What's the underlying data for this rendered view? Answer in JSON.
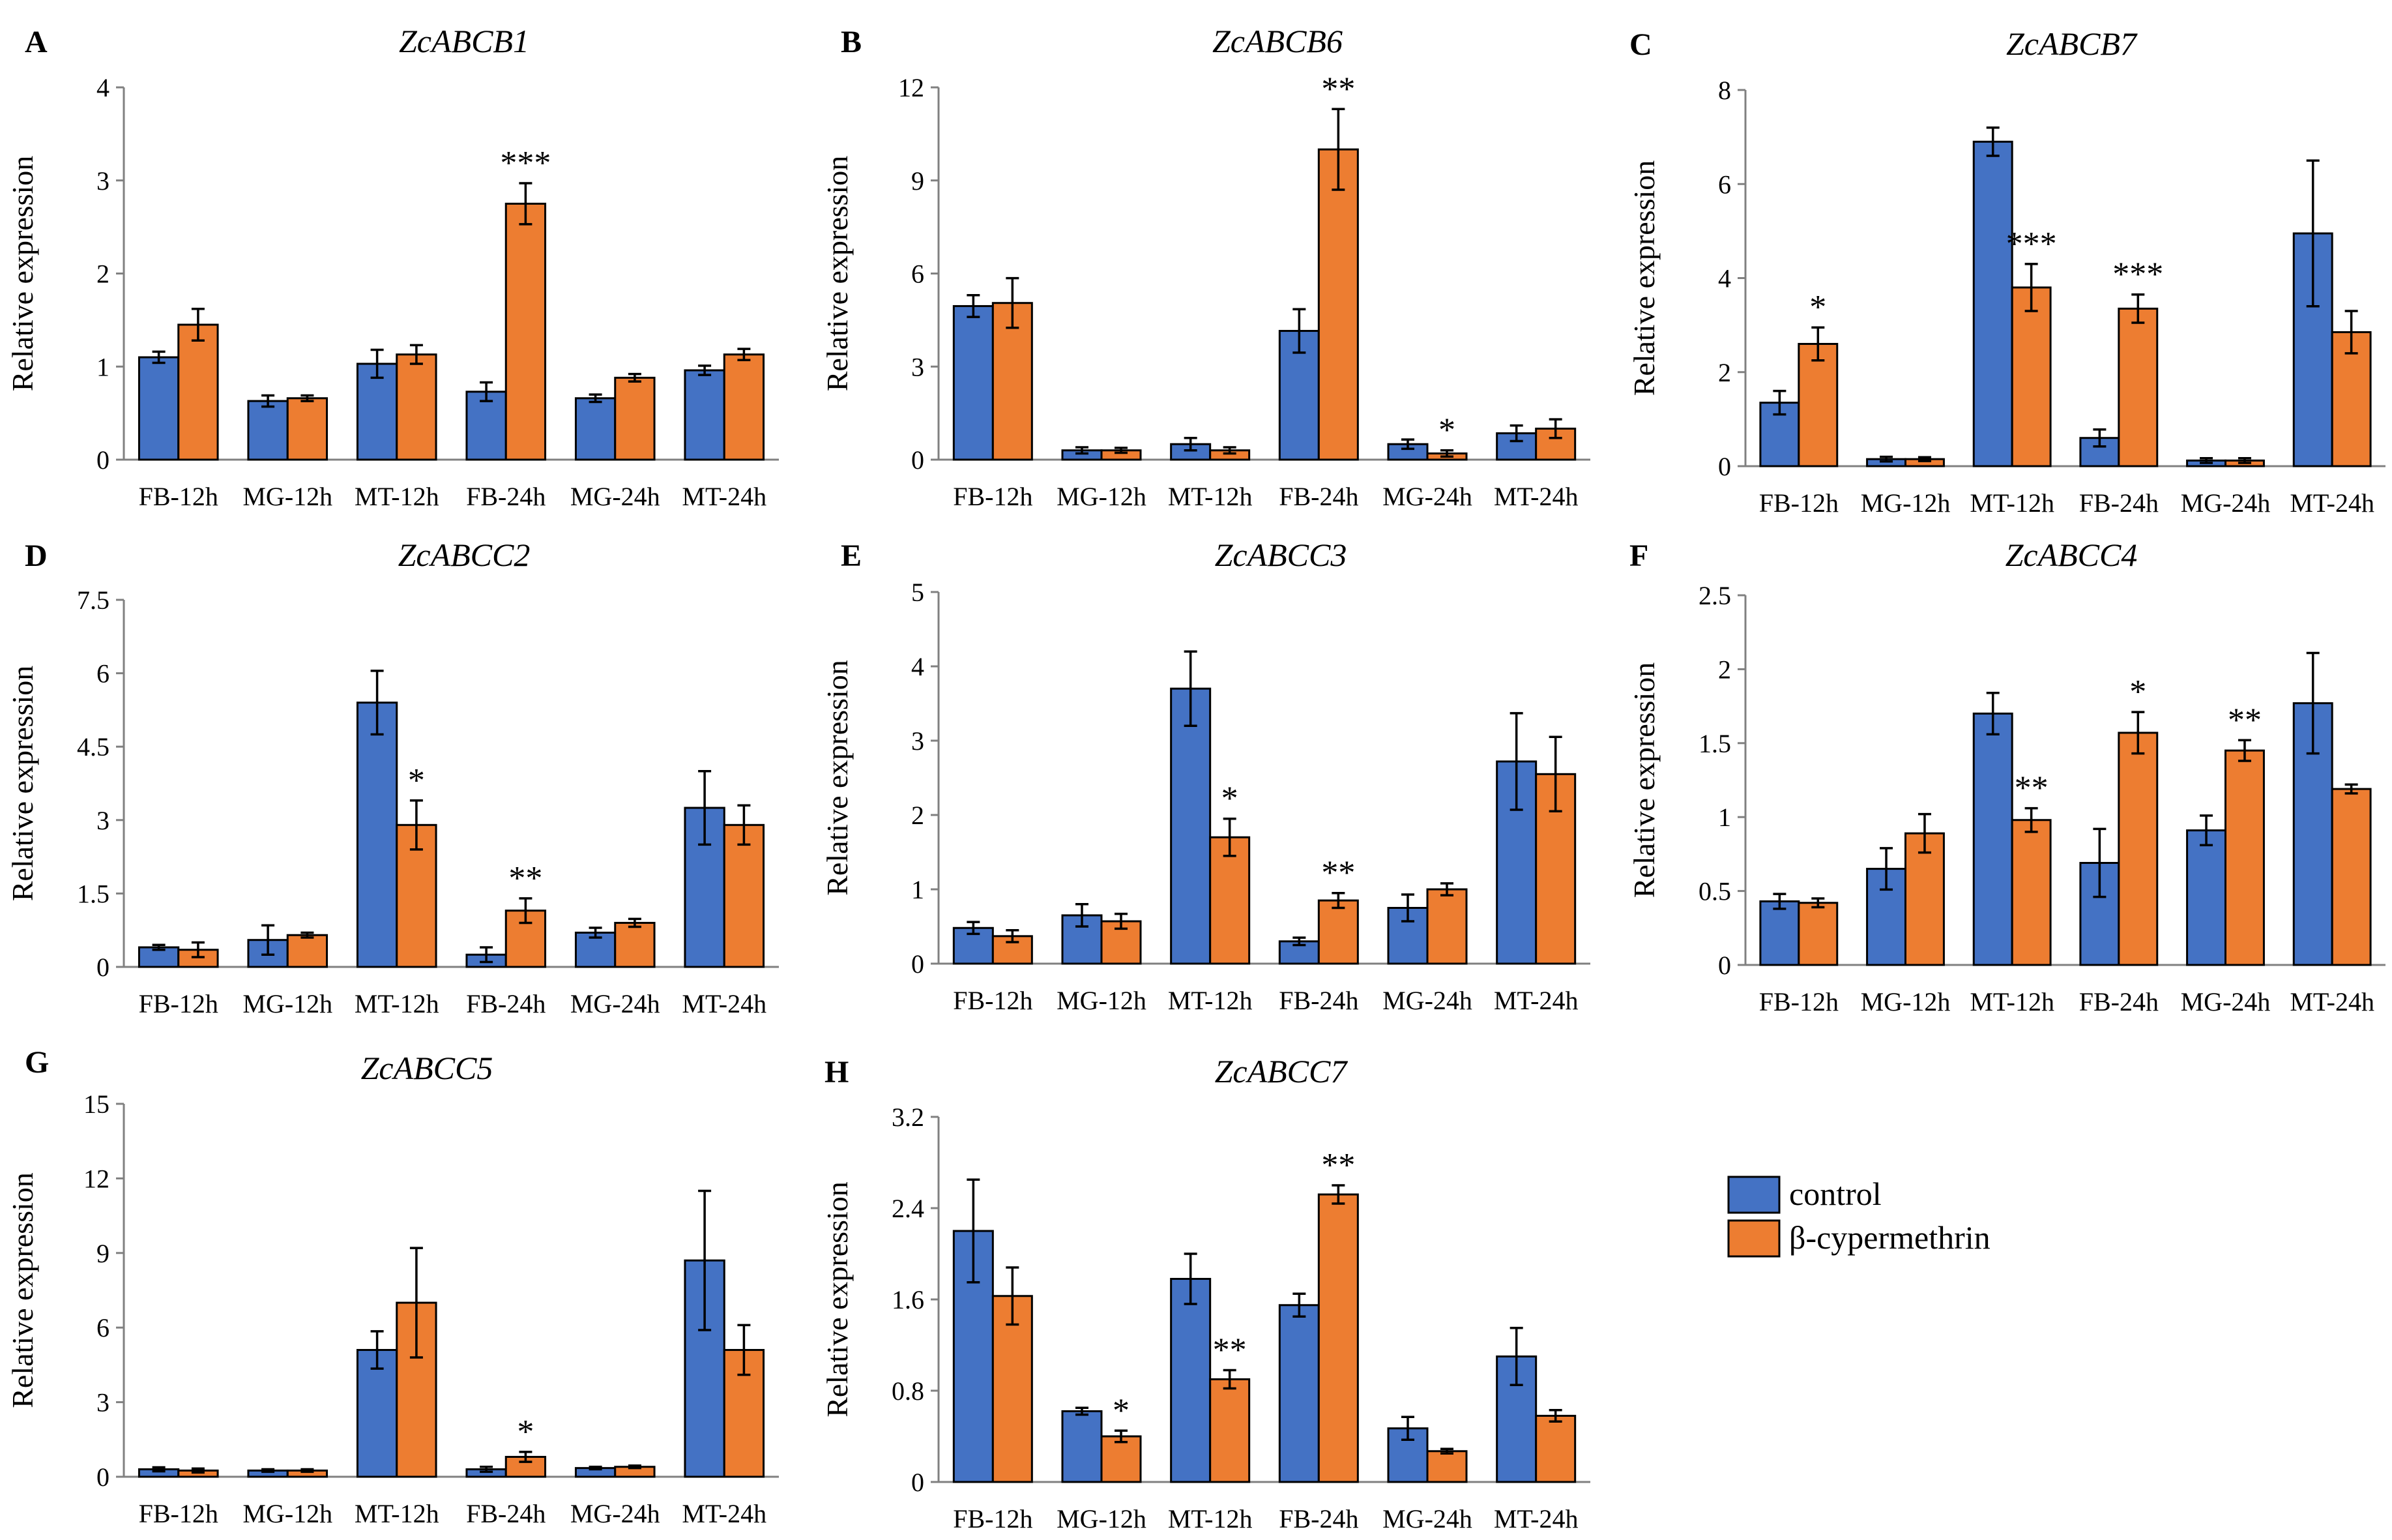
{
  "colors": {
    "control": "#4472C4",
    "treatment": "#ED7D31",
    "bar_stroke": "#000000",
    "axis": "#808080"
  },
  "legend": {
    "items": [
      {
        "label": "control",
        "color": "#4472C4"
      },
      {
        "label": "β-cypermethrin",
        "color": "#ED7D31"
      }
    ]
  },
  "chart_data": [
    {
      "panel": "A",
      "title": "ZcABCB1",
      "type": "bar",
      "ylabel": "Relative expression",
      "categories": [
        "FB-12h",
        "MG-12h",
        "MT-12h",
        "FB-24h",
        "MG-24h",
        "MT-24h"
      ],
      "yticks": [
        "0",
        "1",
        "2",
        "3",
        "4"
      ],
      "ylim": [
        0,
        4
      ],
      "series": [
        {
          "name": "control",
          "values": [
            1.1,
            0.63,
            1.03,
            0.73,
            0.66,
            0.96
          ],
          "errors": [
            0.06,
            0.06,
            0.15,
            0.1,
            0.04,
            0.05
          ]
        },
        {
          "name": "β-cypermethrin",
          "values": [
            1.45,
            0.66,
            1.13,
            2.75,
            0.88,
            1.13
          ],
          "errors": [
            0.17,
            0.03,
            0.1,
            0.22,
            0.04,
            0.06
          ]
        }
      ],
      "significance": [
        {
          "category": "FB-24h",
          "series": "β-cypermethrin",
          "label": "***"
        }
      ]
    },
    {
      "panel": "B",
      "title": "ZcABCB6",
      "type": "bar",
      "ylabel": "Relative expression",
      "categories": [
        "FB-12h",
        "MG-12h",
        "MT-12h",
        "FB-24h",
        "MG-24h",
        "MT-24h"
      ],
      "yticks": [
        "0",
        "3",
        "6",
        "9",
        "12"
      ],
      "ylim": [
        0,
        12
      ],
      "series": [
        {
          "name": "control",
          "values": [
            4.95,
            0.3,
            0.5,
            4.15,
            0.5,
            0.85
          ],
          "errors": [
            0.35,
            0.1,
            0.2,
            0.7,
            0.15,
            0.25
          ]
        },
        {
          "name": "β-cypermethrin",
          "values": [
            5.05,
            0.3,
            0.3,
            10.0,
            0.2,
            1.0
          ],
          "errors": [
            0.8,
            0.08,
            0.1,
            1.3,
            0.1,
            0.3
          ]
        }
      ],
      "significance": [
        {
          "category": "FB-24h",
          "series": "β-cypermethrin",
          "label": "**"
        },
        {
          "category": "MG-24h",
          "series": "β-cypermethrin",
          "label": "*"
        }
      ]
    },
    {
      "panel": "C",
      "title": "ZcABCB7",
      "type": "bar",
      "ylabel": "Relative expression",
      "categories": [
        "FB-12h",
        "MG-12h",
        "MT-12h",
        "FB-24h",
        "MG-24h",
        "MT-24h"
      ],
      "yticks": [
        "0",
        "2",
        "4",
        "6",
        "8"
      ],
      "ylim": [
        0,
        8
      ],
      "series": [
        {
          "name": "control",
          "values": [
            1.35,
            0.15,
            6.9,
            0.6,
            0.12,
            4.95
          ],
          "errors": [
            0.25,
            0.05,
            0.3,
            0.18,
            0.05,
            1.55
          ]
        },
        {
          "name": "β-cypermethrin",
          "values": [
            2.6,
            0.15,
            3.8,
            3.35,
            0.12,
            2.85
          ],
          "errors": [
            0.35,
            0.04,
            0.5,
            0.3,
            0.05,
            0.45
          ]
        }
      ],
      "significance": [
        {
          "category": "FB-12h",
          "series": "β-cypermethrin",
          "label": "*"
        },
        {
          "category": "MT-12h",
          "series": "β-cypermethrin",
          "label": "***"
        },
        {
          "category": "FB-24h",
          "series": "β-cypermethrin",
          "label": "***"
        }
      ]
    },
    {
      "panel": "D",
      "title": "ZcABCC2",
      "type": "bar",
      "ylabel": "Relative expression",
      "categories": [
        "FB-12h",
        "MG-12h",
        "MT-12h",
        "FB-24h",
        "MG-24h",
        "MT-24h"
      ],
      "yticks": [
        "0",
        "1.5",
        "3",
        "4.5",
        "6",
        "7.5"
      ],
      "ylim": [
        0,
        7.5
      ],
      "series": [
        {
          "name": "control",
          "values": [
            0.4,
            0.55,
            5.4,
            0.25,
            0.7,
            3.25
          ],
          "errors": [
            0.05,
            0.3,
            0.65,
            0.15,
            0.1,
            0.75
          ]
        },
        {
          "name": "β-cypermethrin",
          "values": [
            0.35,
            0.65,
            2.9,
            1.15,
            0.9,
            2.9
          ],
          "errors": [
            0.15,
            0.05,
            0.5,
            0.25,
            0.08,
            0.4
          ]
        }
      ],
      "significance": [
        {
          "category": "MT-12h",
          "series": "β-cypermethrin",
          "label": "*"
        },
        {
          "category": "FB-24h",
          "series": "β-cypermethrin",
          "label": "**"
        }
      ]
    },
    {
      "panel": "E",
      "title": "ZcABCC3",
      "type": "bar",
      "ylabel": "Relative expression",
      "categories": [
        "FB-12h",
        "MG-12h",
        "MT-12h",
        "FB-24h",
        "MG-24h",
        "MT-24h"
      ],
      "yticks": [
        "0",
        "1",
        "2",
        "3",
        "4",
        "5"
      ],
      "ylim": [
        0,
        5
      ],
      "series": [
        {
          "name": "control",
          "values": [
            0.48,
            0.65,
            3.7,
            0.3,
            0.75,
            2.72
          ],
          "errors": [
            0.08,
            0.15,
            0.5,
            0.05,
            0.18,
            0.65
          ]
        },
        {
          "name": "β-cypermethrin",
          "values": [
            0.37,
            0.57,
            1.7,
            0.85,
            1.0,
            2.55
          ],
          "errors": [
            0.08,
            0.1,
            0.25,
            0.1,
            0.08,
            0.5
          ]
        }
      ],
      "significance": [
        {
          "category": "MT-12h",
          "series": "β-cypermethrin",
          "label": "*"
        },
        {
          "category": "FB-24h",
          "series": "β-cypermethrin",
          "label": "**"
        }
      ]
    },
    {
      "panel": "F",
      "title": "ZcABCC4",
      "type": "bar",
      "ylabel": "Relative expression",
      "categories": [
        "FB-12h",
        "MG-12h",
        "MT-12h",
        "FB-24h",
        "MG-24h",
        "MT-24h"
      ],
      "yticks": [
        "0",
        "0.5",
        "1",
        "1.5",
        "2",
        "2.5"
      ],
      "ylim": [
        0,
        2.5
      ],
      "series": [
        {
          "name": "control",
          "values": [
            0.43,
            0.65,
            1.7,
            0.69,
            0.91,
            1.77
          ],
          "errors": [
            0.05,
            0.14,
            0.14,
            0.23,
            0.1,
            0.34
          ]
        },
        {
          "name": "β-cypermethrin",
          "values": [
            0.42,
            0.89,
            0.98,
            1.57,
            1.45,
            1.19
          ],
          "errors": [
            0.03,
            0.13,
            0.08,
            0.14,
            0.07,
            0.03
          ]
        }
      ],
      "significance": [
        {
          "category": "MT-12h",
          "series": "β-cypermethrin",
          "label": "**"
        },
        {
          "category": "FB-24h",
          "series": "β-cypermethrin",
          "label": "*"
        },
        {
          "category": "MG-24h",
          "series": "β-cypermethrin",
          "label": "**"
        }
      ]
    },
    {
      "panel": "G",
      "title": "ZcABCC5",
      "type": "bar",
      "ylabel": "Relative expression",
      "categories": [
        "FB-12h",
        "MG-12h",
        "MT-12h",
        "FB-24h",
        "MG-24h",
        "MT-24h"
      ],
      "yticks": [
        "0",
        "3",
        "6",
        "9",
        "12",
        "15"
      ],
      "ylim": [
        0,
        15
      ],
      "series": [
        {
          "name": "control",
          "values": [
            0.3,
            0.25,
            5.1,
            0.3,
            0.35,
            8.7
          ],
          "errors": [
            0.08,
            0.05,
            0.75,
            0.1,
            0.05,
            2.8
          ]
        },
        {
          "name": "β-cypermethrin",
          "values": [
            0.25,
            0.25,
            7.0,
            0.8,
            0.4,
            5.1
          ],
          "errors": [
            0.08,
            0.05,
            2.2,
            0.2,
            0.05,
            1.0
          ]
        }
      ],
      "significance": [
        {
          "category": "FB-24h",
          "series": "β-cypermethrin",
          "label": "*"
        }
      ]
    },
    {
      "panel": "H",
      "title": "ZcABCC7",
      "type": "bar",
      "ylabel": "Relative expression",
      "categories": [
        "FB-12h",
        "MG-12h",
        "MT-12h",
        "FB-24h",
        "MG-24h",
        "MT-24h"
      ],
      "yticks": [
        "0",
        "0.8",
        "1.6",
        "2.4",
        "3.2"
      ],
      "ylim": [
        0,
        3.2
      ],
      "series": [
        {
          "name": "control",
          "values": [
            2.2,
            0.62,
            1.78,
            1.55,
            0.47,
            1.1
          ],
          "errors": [
            0.45,
            0.03,
            0.22,
            0.1,
            0.1,
            0.25
          ]
        },
        {
          "name": "β-cypermethrin",
          "values": [
            1.63,
            0.4,
            0.9,
            2.52,
            0.27,
            0.58
          ],
          "errors": [
            0.25,
            0.05,
            0.08,
            0.08,
            0.02,
            0.05
          ]
        }
      ],
      "significance": [
        {
          "category": "MG-12h",
          "series": "β-cypermethrin",
          "label": "*"
        },
        {
          "category": "MT-12h",
          "series": "β-cypermethrin",
          "label": "**"
        },
        {
          "category": "FB-24h",
          "series": "β-cypermethrin",
          "label": "**"
        }
      ]
    }
  ]
}
